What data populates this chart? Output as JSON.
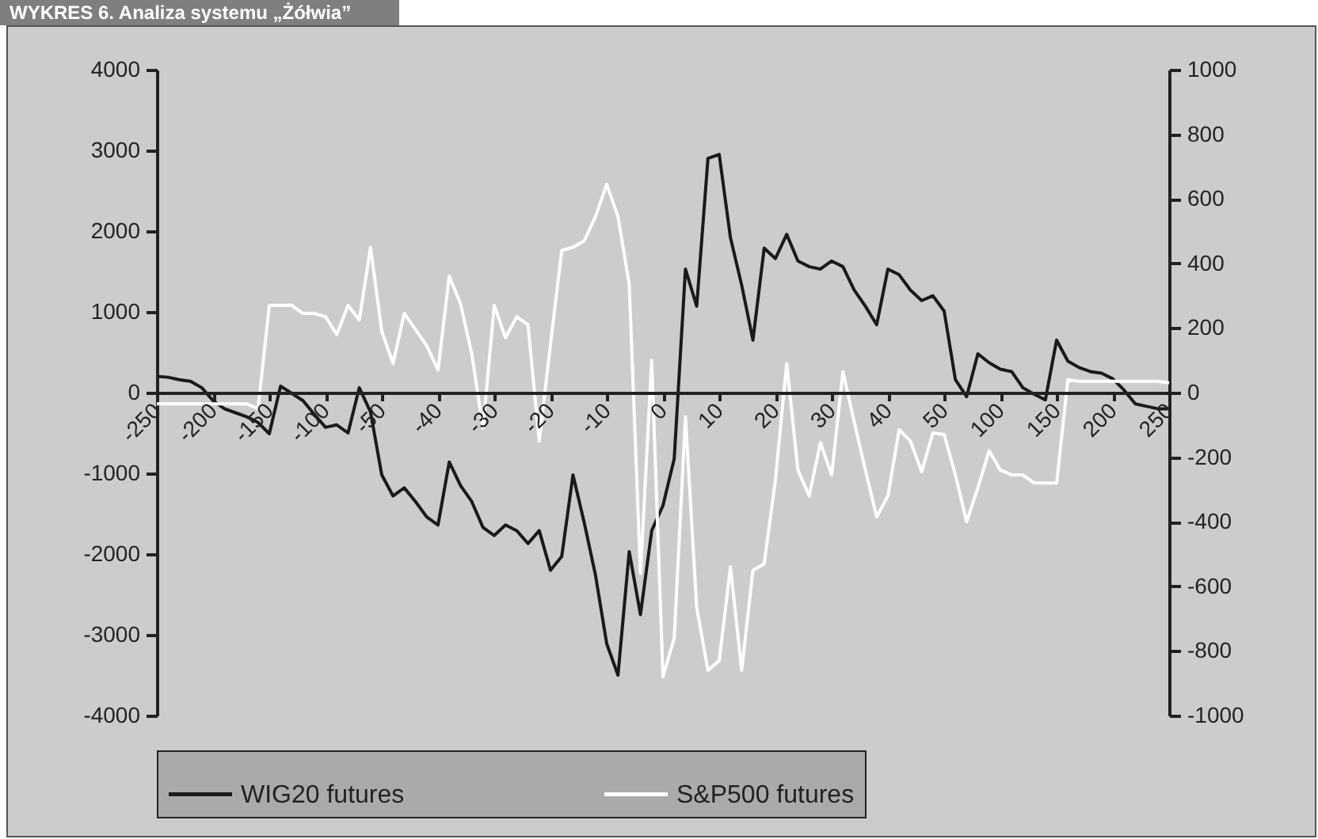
{
  "chart_data": {
    "type": "line",
    "title": "WYKRES 6. Analiza systemu „Żółwia”",
    "categories": [
      "-250",
      null,
      null,
      null,
      null,
      "-200",
      null,
      null,
      null,
      null,
      "-150",
      null,
      null,
      null,
      null,
      "-100",
      null,
      null,
      null,
      null,
      "-50",
      null,
      null,
      null,
      null,
      "-40",
      null,
      null,
      null,
      null,
      "-30",
      null,
      null,
      null,
      null,
      "-20",
      null,
      null,
      null,
      null,
      "-10",
      null,
      null,
      null,
      null,
      "0",
      null,
      null,
      null,
      null,
      "10",
      null,
      null,
      null,
      null,
      "20",
      null,
      null,
      null,
      null,
      "30",
      null,
      null,
      null,
      null,
      "40",
      null,
      null,
      null,
      null,
      "50",
      null,
      null,
      null,
      null,
      "100",
      null,
      null,
      null,
      null,
      "150",
      null,
      null,
      null,
      null,
      "200",
      null,
      null,
      null,
      null,
      "250"
    ],
    "series": [
      {
        "name": "WIG20 futures",
        "color": "#1a1a1a",
        "values": [
          200,
          190,
          160,
          140,
          60,
          -100,
          -200,
          -250,
          -300,
          -370,
          -510,
          80,
          -10,
          -100,
          -270,
          -430,
          -400,
          -500,
          60,
          -240,
          -1020,
          -1280,
          -1180,
          -1350,
          -1540,
          -1640,
          -860,
          -1150,
          -1350,
          -1670,
          -1770,
          -1640,
          -1710,
          -1870,
          -1710,
          -2200,
          -2030,
          -1020,
          -1610,
          -2260,
          -3110,
          -3500,
          -1970,
          -2750,
          -1710,
          -1400,
          -820,
          1530,
          1070,
          2900,
          2950,
          1920,
          1330,
          650,
          1790,
          1660,
          1960,
          1630,
          1560,
          1530,
          1630,
          1560,
          1270,
          1070,
          840,
          1530,
          1460,
          1270,
          1140,
          1200,
          1010,
          160,
          -50,
          480,
          370,
          290,
          260,
          60,
          -20,
          -90,
          650,
          390,
          310,
          260,
          240,
          170,
          30,
          -140,
          -170,
          -200,
          -200
        ]
      },
      {
        "name": "S&P500 futures",
        "color": "#ffffff",
        "axis": "y2",
        "values": [
          -35,
          -35,
          -35,
          -35,
          -35,
          -35,
          -35,
          -35,
          -35,
          -50,
          270,
          270,
          270,
          245,
          245,
          235,
          180,
          270,
          225,
          450,
          190,
          90,
          245,
          195,
          145,
          70,
          360,
          275,
          120,
          -110,
          270,
          170,
          235,
          210,
          -150,
          150,
          440,
          450,
          470,
          545,
          645,
          545,
          335,
          -560,
          100,
          -880,
          -760,
          -75,
          -665,
          -860,
          -830,
          -540,
          -860,
          -550,
          -530,
          -270,
          90,
          -240,
          -320,
          -155,
          -255,
          65,
          -90,
          -240,
          -385,
          -320,
          -115,
          -150,
          -245,
          -125,
          -130,
          -255,
          -400,
          -295,
          -180,
          -240,
          -255,
          -255,
          -280,
          -280,
          -280,
          40,
          35,
          35,
          35,
          35,
          35,
          35,
          35,
          35,
          30
        ]
      }
    ],
    "ylim": [
      -4000,
      4000
    ],
    "yticks": [
      -4000,
      -3000,
      -2000,
      -1000,
      0,
      1000,
      2000,
      3000,
      4000
    ],
    "y2lim": [
      -1000,
      1000
    ],
    "y2ticks": [
      -1000,
      -800,
      -600,
      -400,
      -200,
      0,
      200,
      400,
      600,
      800,
      1000
    ],
    "legend": "bottom",
    "grid": false
  }
}
